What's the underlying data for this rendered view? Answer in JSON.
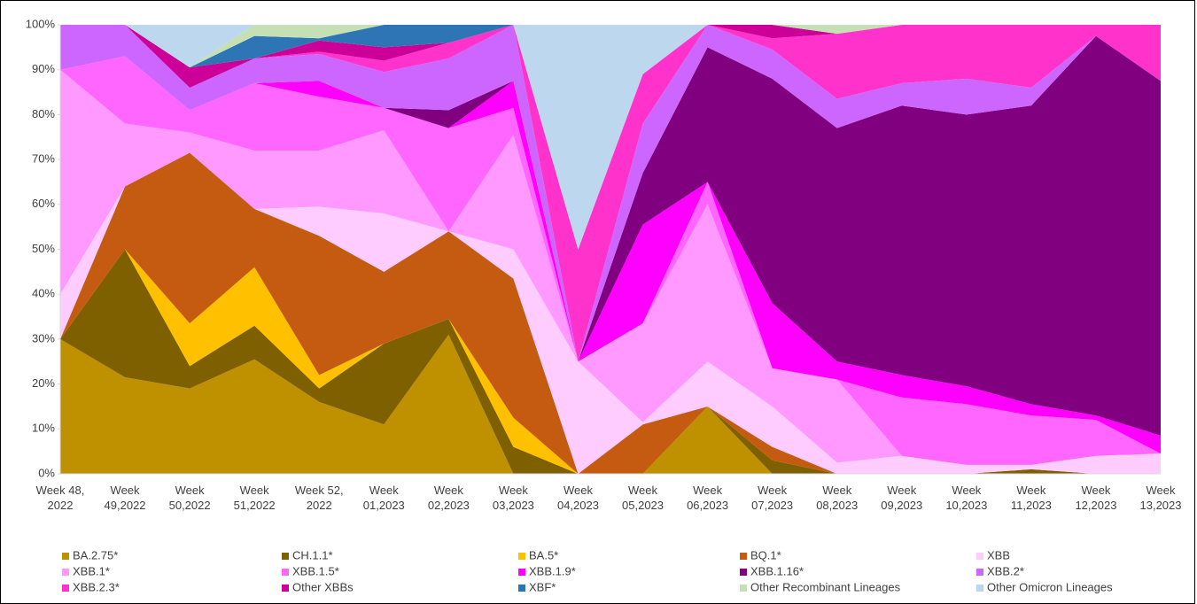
{
  "chart_data": {
    "type": "stacked_area",
    "categories": [
      "Week 48, 2022",
      "Week 49,2022",
      "Week 50,2022",
      "Week 51,2022",
      "Week 52, 2022",
      "Week 01,2023",
      "Week 02,2023",
      "Week 03,2023",
      "Week 04,2023",
      "Week 05,2023",
      "Week 06,2023",
      "Week 07,2023",
      "Week 08,2023",
      "Week 09,2023",
      "Week 10,2023",
      "Week 11,2023",
      "Week 12,2023",
      "Week 13,2023"
    ],
    "ylim": [
      0,
      100
    ],
    "yticks": [
      {
        "value": 0,
        "label": "0%"
      },
      {
        "value": 10,
        "label": "10%"
      },
      {
        "value": 20,
        "label": "20%"
      },
      {
        "value": 30,
        "label": "30%"
      },
      {
        "value": 40,
        "label": "40%"
      },
      {
        "value": 50,
        "label": "50%"
      },
      {
        "value": 60,
        "label": "60%"
      },
      {
        "value": 70,
        "label": "70%"
      },
      {
        "value": 80,
        "label": "80%"
      },
      {
        "value": 90,
        "label": "90%"
      },
      {
        "value": 100,
        "label": "100%"
      }
    ],
    "grid": false,
    "legend": "bottom",
    "series": [
      {
        "name": "BA.2.75*",
        "color": "#bf9000",
        "values": [
          30,
          21.5,
          19,
          25.5,
          16,
          11,
          31,
          0,
          0,
          0,
          15,
          0,
          0,
          0,
          0,
          0,
          0,
          0
        ]
      },
      {
        "name": "CH.1.1*",
        "color": "#7f6000",
        "values": [
          0,
          28.5,
          5,
          7.5,
          3,
          18,
          3.5,
          6,
          0,
          0,
          0,
          3,
          0,
          0,
          0,
          1,
          0,
          0
        ]
      },
      {
        "name": "BA.5*",
        "color": "#ffc000",
        "values": [
          0,
          0,
          9.5,
          13,
          3,
          0,
          0,
          6.5,
          0,
          0,
          0,
          0,
          0,
          0,
          0,
          0,
          0,
          0
        ]
      },
      {
        "name": "BQ.1*",
        "color": "#c55a11",
        "values": [
          0,
          14,
          38,
          13,
          31,
          16,
          19.5,
          31,
          0,
          11,
          0,
          3,
          0,
          0,
          0,
          0,
          0,
          0
        ]
      },
      {
        "name": "XBB",
        "color": "#ffccff",
        "values": [
          10,
          0,
          0,
          0,
          6.5,
          13,
          0,
          6.5,
          25,
          0.5,
          10,
          9,
          2.5,
          4,
          2,
          1,
          4,
          4.5
        ]
      },
      {
        "name": "XBB.1*",
        "color": "#ff99ff",
        "values": [
          50,
          14,
          4.5,
          13,
          12.5,
          18.5,
          0,
          25.5,
          0,
          22,
          35,
          8.5,
          18.5,
          0,
          0,
          0,
          0,
          0
        ]
      },
      {
        "name": "XBB.1.5*",
        "color": "#ff66ff",
        "values": [
          0,
          15,
          5,
          15,
          12,
          5,
          23,
          6,
          0,
          0,
          5,
          0,
          0,
          13,
          13.5,
          11,
          8,
          0
        ]
      },
      {
        "name": "XBB.1.9*",
        "color": "#ff00ff",
        "values": [
          0,
          0,
          0,
          0,
          3.5,
          0,
          0,
          6,
          0,
          22,
          0,
          14.5,
          4,
          5,
          4,
          2.5,
          1,
          4
        ]
      },
      {
        "name": "XBB.1.16*",
        "color": "#800080",
        "values": [
          0,
          0,
          0,
          0,
          0,
          0,
          4,
          0,
          0,
          11.5,
          30,
          50,
          52,
          60,
          60.5,
          66.5,
          84.5,
          79
        ]
      },
      {
        "name": "XBB.2*",
        "color": "#cc66ff",
        "values": [
          10,
          7,
          5,
          5.5,
          6,
          8,
          11.5,
          12.5,
          0,
          11,
          5,
          6.5,
          6.5,
          5,
          8,
          4,
          0,
          0
        ]
      },
      {
        "name": "XBB.2.3*",
        "color": "#ff33cc",
        "values": [
          0,
          0,
          0,
          0,
          0.5,
          2.5,
          3.5,
          0,
          25,
          11,
          0,
          2.5,
          14.5,
          13,
          12,
          14,
          2.5,
          12.5
        ]
      },
      {
        "name": "Other XBBs",
        "color": "#cc0099",
        "values": [
          0,
          0,
          4.5,
          0,
          2.5,
          3,
          0,
          0,
          0,
          0,
          0,
          3,
          0,
          0,
          0,
          0,
          0,
          0
        ]
      },
      {
        "name": "XBF*",
        "color": "#2e75b6",
        "values": [
          0,
          0,
          0,
          5,
          0.5,
          5,
          4,
          0,
          0,
          0,
          0,
          0,
          0,
          0,
          0,
          0,
          0,
          0
        ]
      },
      {
        "name": "Other Recombinant Lineages",
        "color": "#c5e0b4",
        "values": [
          0,
          0,
          0,
          2.5,
          3,
          0,
          0,
          0,
          0,
          0,
          0,
          0,
          2,
          0,
          0,
          0,
          0,
          0
        ]
      },
      {
        "name": "Other Omicron Lineages",
        "color": "#bdd7ee",
        "values": [
          0,
          0,
          9.5,
          0,
          0,
          0,
          0,
          0,
          50,
          11,
          0,
          0,
          0,
          0,
          0,
          0,
          0,
          0
        ]
      }
    ]
  }
}
